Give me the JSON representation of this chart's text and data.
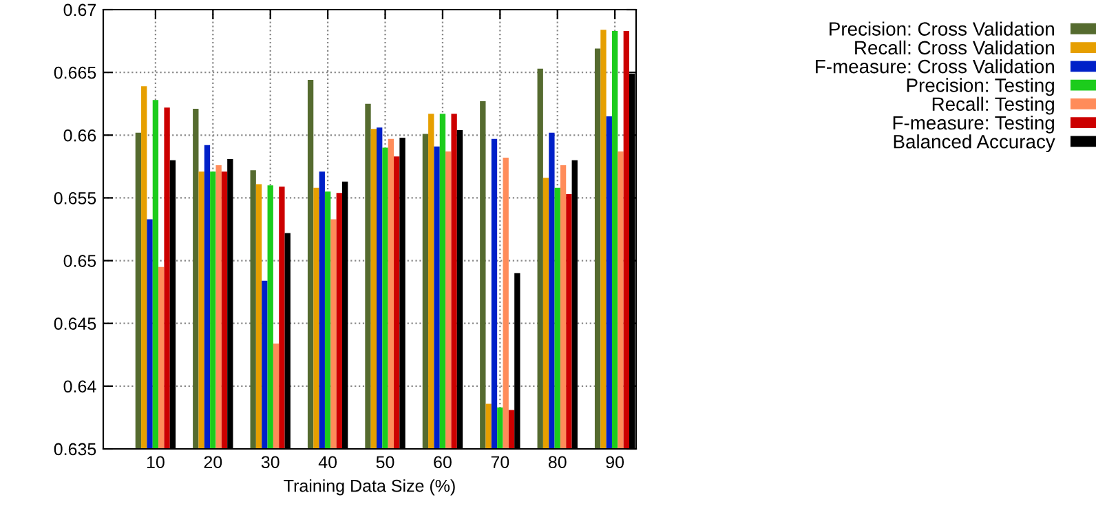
{
  "chart_data": {
    "type": "bar",
    "xlabel": "Training Data Size (%)",
    "categories": [
      "10",
      "20",
      "30",
      "40",
      "50",
      "60",
      "70",
      "80",
      "90"
    ],
    "series": [
      {
        "name": "Precision: Cross Validation",
        "color": "#556b2f",
        "values": [
          0.6602,
          0.6621,
          0.6572,
          0.6644,
          0.6625,
          0.6601,
          0.6627,
          0.6653,
          0.6669
        ]
      },
      {
        "name": "Recall: Cross Validation",
        "color": "#e69f00",
        "values": [
          0.6639,
          0.6571,
          0.6561,
          0.6558,
          0.6605,
          0.6617,
          0.6386,
          0.6566,
          0.6684
        ]
      },
      {
        "name": "F-measure: Cross Validation",
        "color": "#0020c8",
        "values": [
          0.6533,
          0.6592,
          0.6484,
          0.6571,
          0.6606,
          0.6591,
          0.6597,
          0.6602,
          0.6615
        ]
      },
      {
        "name": "Precision: Testing",
        "color": "#1ccc1c",
        "values": [
          0.6628,
          0.6571,
          0.656,
          0.6555,
          0.659,
          0.6617,
          0.6383,
          0.6558,
          0.6683
        ]
      },
      {
        "name": "Recall: Testing",
        "color": "#ff8c5a",
        "values": [
          0.6495,
          0.6576,
          0.6434,
          0.6533,
          0.6597,
          0.6587,
          0.6582,
          0.6576,
          0.6587
        ]
      },
      {
        "name": "F-measure: Testing",
        "color": "#cc0000",
        "values": [
          0.6622,
          0.6571,
          0.6559,
          0.6554,
          0.6583,
          0.6617,
          0.6381,
          0.6553,
          0.6683
        ]
      },
      {
        "name": "Balanced Accuracy",
        "color": "#000000",
        "values": [
          0.658,
          0.6581,
          0.6522,
          0.6563,
          0.6598,
          0.6604,
          0.649,
          0.658,
          0.6649
        ]
      }
    ],
    "ylim": [
      0.635,
      0.67
    ],
    "yticks": [
      0.635,
      0.64,
      0.645,
      0.65,
      0.655,
      0.66,
      0.665,
      0.67
    ],
    "grid": true,
    "legend": "right"
  }
}
